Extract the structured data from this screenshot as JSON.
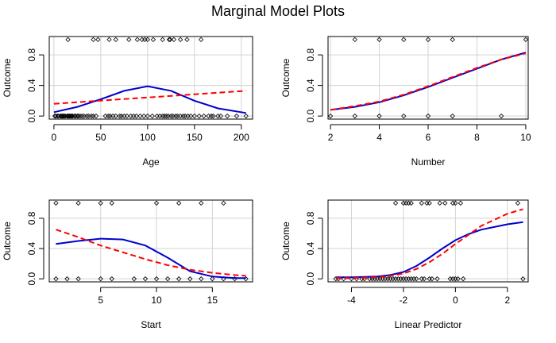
{
  "title": "Marginal Model Plots",
  "colors": {
    "model_line": "#ff0000",
    "data_line": "#0000cd",
    "grid": "#d3d3d3",
    "points": "#000000"
  },
  "chart_data": [
    {
      "type": "scatter",
      "xlabel": "Age",
      "ylabel": "Outcome",
      "xlim": [
        -5,
        212
      ],
      "ylim": [
        -0.04,
        1.04
      ],
      "xticks": [
        0,
        50,
        100,
        150,
        200
      ],
      "yticks": [
        0.0,
        0.4,
        0.8
      ],
      "ytick_labels": [
        "0.0",
        "0.4",
        "0.8"
      ],
      "grid": true,
      "points_y1": [
        15,
        42,
        47,
        59,
        66,
        80,
        89,
        94,
        97,
        100,
        106,
        116,
        123,
        124,
        128,
        135,
        142,
        157
      ],
      "points_y0": [
        1,
        2,
        4,
        5,
        7,
        8,
        9,
        10,
        11,
        12,
        14,
        15,
        16,
        17,
        18,
        19,
        20,
        22,
        23,
        25,
        26,
        28,
        30,
        32,
        35,
        37,
        40,
        42,
        45,
        55,
        58,
        60,
        63,
        66,
        70,
        72,
        75,
        78,
        82,
        85,
        88,
        92,
        96,
        100,
        105,
        110,
        113,
        116,
        118,
        120,
        122,
        125,
        127,
        130,
        132,
        135,
        138,
        140,
        143,
        146,
        150,
        155,
        160,
        165,
        168,
        170,
        175,
        178,
        185,
        195,
        205
      ],
      "series": [
        {
          "name": "",
          "style": "solid",
          "color": "#0000cd",
          "x": [
            0,
            25,
            50,
            75,
            100,
            125,
            150,
            175,
            205
          ],
          "y": [
            0.05,
            0.12,
            0.22,
            0.33,
            0.39,
            0.33,
            0.2,
            0.1,
            0.04
          ]
        },
        {
          "name": "",
          "style": "dashed",
          "color": "#ff0000",
          "x": [
            0,
            205
          ],
          "y": [
            0.16,
            0.33
          ]
        }
      ]
    },
    {
      "type": "scatter",
      "xlabel": "Number",
      "ylabel": "Outcome",
      "xlim": [
        1.9,
        10.1
      ],
      "ylim": [
        -0.04,
        1.04
      ],
      "xticks": [
        2,
        4,
        6,
        8,
        10
      ],
      "yticks": [
        0.0,
        0.4,
        0.8
      ],
      "ytick_labels": [
        "0.0",
        "0.4",
        "0.8"
      ],
      "grid": true,
      "points_y1": [
        3,
        4,
        5,
        6,
        7,
        10
      ],
      "points_y0": [
        2,
        3,
        4,
        5,
        6,
        7,
        9
      ],
      "series": [
        {
          "name": "",
          "style": "solid",
          "color": "#0000cd",
          "x": [
            2,
            3,
            4,
            5,
            6,
            7,
            8,
            9,
            10
          ],
          "y": [
            0.08,
            0.12,
            0.18,
            0.27,
            0.38,
            0.5,
            0.62,
            0.74,
            0.83
          ]
        },
        {
          "name": "",
          "style": "dashed",
          "color": "#ff0000",
          "x": [
            2,
            3,
            4,
            5,
            6,
            7,
            8,
            9,
            10
          ],
          "y": [
            0.08,
            0.13,
            0.19,
            0.28,
            0.39,
            0.51,
            0.63,
            0.74,
            0.82
          ]
        }
      ]
    },
    {
      "type": "scatter",
      "xlabel": "Start",
      "ylabel": "Outcome",
      "xlim": [
        0.4,
        18.6
      ],
      "ylim": [
        -0.04,
        1.04
      ],
      "xticks": [
        5,
        10,
        15
      ],
      "yticks": [
        0.0,
        0.4,
        0.8
      ],
      "ytick_labels": [
        "0.0",
        "0.4",
        "0.8"
      ],
      "grid": true,
      "points_y1": [
        1,
        3,
        5,
        6,
        10,
        12,
        14,
        16
      ],
      "points_y0": [
        1,
        2,
        3,
        5,
        6,
        8,
        9,
        10,
        11,
        12,
        13,
        14,
        15,
        16,
        17,
        18
      ],
      "series": [
        {
          "name": "",
          "style": "solid",
          "color": "#0000cd",
          "x": [
            1,
            3,
            5,
            7,
            9,
            11,
            13,
            15,
            17,
            18
          ],
          "y": [
            0.46,
            0.5,
            0.53,
            0.52,
            0.44,
            0.28,
            0.1,
            0.03,
            0.01,
            0.01
          ]
        },
        {
          "name": "",
          "style": "dashed",
          "color": "#ff0000",
          "x": [
            1,
            3,
            5,
            7,
            9,
            11,
            13,
            15,
            17,
            18
          ],
          "y": [
            0.65,
            0.55,
            0.44,
            0.35,
            0.26,
            0.18,
            0.12,
            0.08,
            0.05,
            0.04
          ]
        }
      ]
    },
    {
      "type": "scatter",
      "xlabel": "Linear Predictor",
      "ylabel": "Outcome",
      "xlim": [
        -4.9,
        2.8
      ],
      "ylim": [
        -0.04,
        1.04
      ],
      "xticks": [
        -4,
        -2,
        0,
        2
      ],
      "yticks": [
        0.0,
        0.4,
        0.8
      ],
      "ytick_labels": [
        "0.0",
        "0.4",
        "0.8"
      ],
      "grid": true,
      "points_y1": [
        -2.3,
        -2.0,
        -1.9,
        -1.8,
        -1.7,
        -1.3,
        -1.1,
        -1.0,
        -0.6,
        -0.4,
        -0.1,
        0.0,
        0.2,
        2.4
      ],
      "points_y0": [
        -4.6,
        -4.5,
        -4.3,
        -4.0,
        -3.8,
        -3.6,
        -3.5,
        -3.3,
        -3.2,
        -3.1,
        -3.0,
        -2.9,
        -2.8,
        -2.7,
        -2.6,
        -2.5,
        -2.4,
        -2.3,
        -2.2,
        -2.1,
        -2.0,
        -1.9,
        -1.8,
        -1.7,
        -1.6,
        -1.5,
        -1.3,
        -1.2,
        -1.0,
        -0.9,
        -0.7,
        -0.2,
        -0.1,
        0.0,
        0.1,
        0.3,
        2.6
      ],
      "series": [
        {
          "name": "",
          "style": "solid",
          "color": "#0000cd",
          "x": [
            -4.6,
            -4,
            -3,
            -2.5,
            -2,
            -1.5,
            -1,
            -0.5,
            0,
            0.5,
            1,
            2,
            2.6
          ],
          "y": [
            0.02,
            0.02,
            0.03,
            0.05,
            0.09,
            0.17,
            0.28,
            0.4,
            0.51,
            0.59,
            0.65,
            0.72,
            0.75
          ]
        },
        {
          "name": "",
          "style": "dashed",
          "color": "#ff0000",
          "x": [
            -4.6,
            -4,
            -3,
            -2.5,
            -2,
            -1.5,
            -1,
            -0.5,
            0,
            0.5,
            1,
            2,
            2.6
          ],
          "y": [
            0.01,
            0.01,
            0.02,
            0.04,
            0.07,
            0.13,
            0.22,
            0.33,
            0.46,
            0.58,
            0.7,
            0.86,
            0.92
          ]
        }
      ]
    }
  ]
}
